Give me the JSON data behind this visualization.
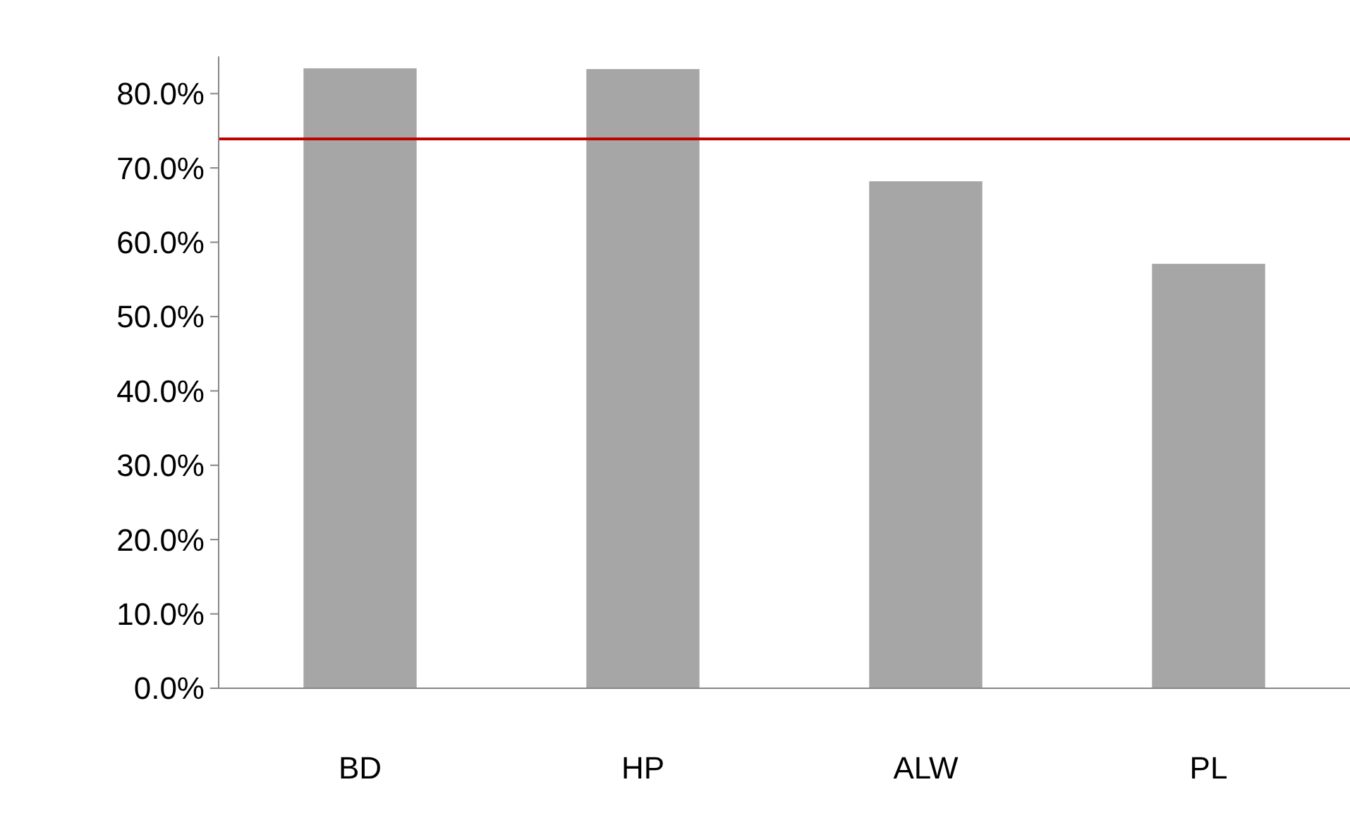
{
  "chart_data": {
    "type": "bar",
    "categories": [
      "BD",
      "HP",
      "ALW",
      "PL"
    ],
    "values": [
      83.4,
      83.3,
      68.2,
      57.1
    ],
    "color": "#a6a6a6",
    "ylim": [
      0,
      85
    ],
    "yticks": [
      {
        "value": 0,
        "label": "0.0%"
      },
      {
        "value": 10,
        "label": "10.0%"
      },
      {
        "value": 20,
        "label": "20.0%"
      },
      {
        "value": 30,
        "label": "30.0%"
      },
      {
        "value": 40,
        "label": "40.0%"
      },
      {
        "value": 50,
        "label": "50.0%"
      },
      {
        "value": 60,
        "label": "60.0%"
      },
      {
        "value": 70,
        "label": "70.0%"
      },
      {
        "value": 80,
        "label": "80.0%"
      }
    ],
    "ref_lines": [
      {
        "axis": "y",
        "value": 73.9,
        "color": "#c00000"
      }
    ]
  }
}
